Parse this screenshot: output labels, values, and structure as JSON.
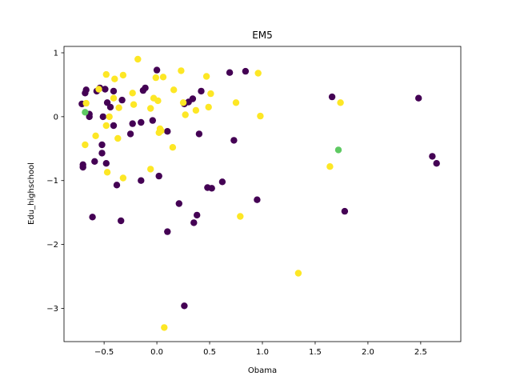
{
  "chart_data": {
    "type": "scatter",
    "title": "EM5",
    "xlabel": "Obama",
    "ylabel": "Edu_highschool",
    "xlim": [
      -0.88,
      2.88
    ],
    "ylim": [
      -3.52,
      1.1
    ],
    "xticks": [
      -0.5,
      0.0,
      0.5,
      1.0,
      1.5,
      2.0,
      2.5
    ],
    "xtick_labels": [
      "−0.5",
      "0.0",
      "0.5",
      "1.0",
      "1.5",
      "2.0",
      "2.5"
    ],
    "yticks": [
      -3,
      -2,
      -1,
      0,
      1
    ],
    "ytick_labels": [
      "−3",
      "−2",
      "−1",
      "0",
      "1"
    ],
    "grid": false,
    "colors": {
      "purple": "#440154",
      "yellow": "#fde725",
      "green": "#5ec962"
    },
    "points": [
      {
        "x": -0.67,
        "y": 0.42,
        "c": "purple"
      },
      {
        "x": -0.71,
        "y": 0.2,
        "c": "purple"
      },
      {
        "x": -0.68,
        "y": 0.37,
        "c": "purple"
      },
      {
        "x": -0.64,
        "y": 0.04,
        "c": "purple"
      },
      {
        "x": -0.64,
        "y": 0.0,
        "c": "purple"
      },
      {
        "x": -0.57,
        "y": 0.4,
        "c": "purple"
      },
      {
        "x": -0.54,
        "y": 0.45,
        "c": "purple"
      },
      {
        "x": -0.49,
        "y": 0.43,
        "c": "purple"
      },
      {
        "x": -0.51,
        "y": 0.0,
        "c": "purple"
      },
      {
        "x": -0.47,
        "y": 0.22,
        "c": "purple"
      },
      {
        "x": -0.44,
        "y": 0.15,
        "c": "purple"
      },
      {
        "x": -0.41,
        "y": 0.4,
        "c": "purple"
      },
      {
        "x": -0.41,
        "y": -0.14,
        "c": "purple"
      },
      {
        "x": -0.33,
        "y": 0.26,
        "c": "purple"
      },
      {
        "x": -0.52,
        "y": -0.44,
        "c": "purple"
      },
      {
        "x": -0.52,
        "y": -0.57,
        "c": "purple"
      },
      {
        "x": -0.48,
        "y": -0.73,
        "c": "purple"
      },
      {
        "x": -0.59,
        "y": -0.7,
        "c": "purple"
      },
      {
        "x": -0.7,
        "y": -0.75,
        "c": "purple"
      },
      {
        "x": -0.7,
        "y": -0.79,
        "c": "purple"
      },
      {
        "x": -0.38,
        "y": -1.07,
        "c": "purple"
      },
      {
        "x": -0.61,
        "y": -1.57,
        "c": "purple"
      },
      {
        "x": -0.34,
        "y": -1.63,
        "c": "purple"
      },
      {
        "x": -0.25,
        "y": -0.27,
        "c": "purple"
      },
      {
        "x": -0.23,
        "y": -0.11,
        "c": "purple"
      },
      {
        "x": -0.15,
        "y": -0.09,
        "c": "purple"
      },
      {
        "x": -0.13,
        "y": 0.41,
        "c": "purple"
      },
      {
        "x": -0.11,
        "y": 0.45,
        "c": "purple"
      },
      {
        "x": -0.04,
        "y": -0.06,
        "c": "purple"
      },
      {
        "x": 0.0,
        "y": 0.73,
        "c": "purple"
      },
      {
        "x": -0.15,
        "y": -1.0,
        "c": "purple"
      },
      {
        "x": 0.02,
        "y": -0.93,
        "c": "purple"
      },
      {
        "x": 0.1,
        "y": -0.23,
        "c": "purple"
      },
      {
        "x": 0.1,
        "y": -1.8,
        "c": "purple"
      },
      {
        "x": 0.21,
        "y": -1.36,
        "c": "purple"
      },
      {
        "x": 0.26,
        "y": 0.2,
        "c": "purple"
      },
      {
        "x": 0.3,
        "y": 0.23,
        "c": "purple"
      },
      {
        "x": 0.34,
        "y": 0.28,
        "c": "purple"
      },
      {
        "x": 0.42,
        "y": 0.4,
        "c": "purple"
      },
      {
        "x": 0.4,
        "y": -0.27,
        "c": "purple"
      },
      {
        "x": 0.26,
        "y": -2.96,
        "c": "purple"
      },
      {
        "x": 0.35,
        "y": -1.66,
        "c": "purple"
      },
      {
        "x": 0.38,
        "y": -1.54,
        "c": "purple"
      },
      {
        "x": 0.48,
        "y": -1.11,
        "c": "purple"
      },
      {
        "x": 0.52,
        "y": -1.12,
        "c": "purple"
      },
      {
        "x": 0.62,
        "y": -1.02,
        "c": "purple"
      },
      {
        "x": 0.69,
        "y": 0.69,
        "c": "purple"
      },
      {
        "x": 0.84,
        "y": 0.71,
        "c": "purple"
      },
      {
        "x": 0.73,
        "y": -0.37,
        "c": "purple"
      },
      {
        "x": 0.95,
        "y": -1.3,
        "c": "purple"
      },
      {
        "x": 1.66,
        "y": 0.31,
        "c": "purple"
      },
      {
        "x": 1.78,
        "y": -1.48,
        "c": "purple"
      },
      {
        "x": 2.48,
        "y": 0.29,
        "c": "purple"
      },
      {
        "x": 2.61,
        "y": -0.62,
        "c": "purple"
      },
      {
        "x": 2.65,
        "y": -0.73,
        "c": "purple"
      },
      {
        "x": -0.67,
        "y": 0.21,
        "c": "yellow"
      },
      {
        "x": -0.55,
        "y": 0.43,
        "c": "yellow"
      },
      {
        "x": -0.48,
        "y": 0.66,
        "c": "yellow"
      },
      {
        "x": -0.4,
        "y": 0.59,
        "c": "yellow"
      },
      {
        "x": -0.32,
        "y": 0.65,
        "c": "yellow"
      },
      {
        "x": -0.18,
        "y": 0.9,
        "c": "yellow"
      },
      {
        "x": -0.45,
        "y": 0.0,
        "c": "yellow"
      },
      {
        "x": -0.48,
        "y": -0.14,
        "c": "yellow"
      },
      {
        "x": -0.36,
        "y": 0.14,
        "c": "yellow"
      },
      {
        "x": -0.41,
        "y": 0.29,
        "c": "yellow"
      },
      {
        "x": -0.22,
        "y": 0.19,
        "c": "yellow"
      },
      {
        "x": -0.23,
        "y": 0.37,
        "c": "yellow"
      },
      {
        "x": -0.58,
        "y": -0.3,
        "c": "yellow"
      },
      {
        "x": -0.37,
        "y": -0.34,
        "c": "yellow"
      },
      {
        "x": -0.68,
        "y": -0.44,
        "c": "yellow"
      },
      {
        "x": -0.47,
        "y": -0.87,
        "c": "yellow"
      },
      {
        "x": -0.32,
        "y": -0.96,
        "c": "yellow"
      },
      {
        "x": -0.06,
        "y": 0.13,
        "c": "yellow"
      },
      {
        "x": -0.03,
        "y": 0.29,
        "c": "yellow"
      },
      {
        "x": 0.01,
        "y": 0.25,
        "c": "yellow"
      },
      {
        "x": -0.01,
        "y": 0.61,
        "c": "yellow"
      },
      {
        "x": 0.06,
        "y": 0.62,
        "c": "yellow"
      },
      {
        "x": 0.02,
        "y": -0.25,
        "c": "yellow"
      },
      {
        "x": 0.03,
        "y": -0.19,
        "c": "yellow"
      },
      {
        "x": 0.04,
        "y": -0.22,
        "c": "yellow"
      },
      {
        "x": -0.06,
        "y": -0.82,
        "c": "yellow"
      },
      {
        "x": 0.16,
        "y": 0.42,
        "c": "yellow"
      },
      {
        "x": 0.23,
        "y": 0.72,
        "c": "yellow"
      },
      {
        "x": 0.25,
        "y": 0.22,
        "c": "yellow"
      },
      {
        "x": 0.27,
        "y": 0.03,
        "c": "yellow"
      },
      {
        "x": 0.37,
        "y": 0.1,
        "c": "yellow"
      },
      {
        "x": 0.15,
        "y": -0.48,
        "c": "yellow"
      },
      {
        "x": 0.47,
        "y": 0.63,
        "c": "yellow"
      },
      {
        "x": 0.51,
        "y": 0.36,
        "c": "yellow"
      },
      {
        "x": 0.49,
        "y": 0.15,
        "c": "yellow"
      },
      {
        "x": 0.75,
        "y": 0.22,
        "c": "yellow"
      },
      {
        "x": 0.96,
        "y": 0.68,
        "c": "yellow"
      },
      {
        "x": 0.98,
        "y": 0.01,
        "c": "yellow"
      },
      {
        "x": 0.79,
        "y": -1.56,
        "c": "yellow"
      },
      {
        "x": 1.34,
        "y": -2.45,
        "c": "yellow"
      },
      {
        "x": 1.64,
        "y": -0.78,
        "c": "yellow"
      },
      {
        "x": 1.74,
        "y": 0.22,
        "c": "yellow"
      },
      {
        "x": 0.07,
        "y": -3.3,
        "c": "yellow"
      },
      {
        "x": -0.68,
        "y": 0.07,
        "c": "green"
      },
      {
        "x": 1.72,
        "y": -0.52,
        "c": "green"
      }
    ]
  }
}
